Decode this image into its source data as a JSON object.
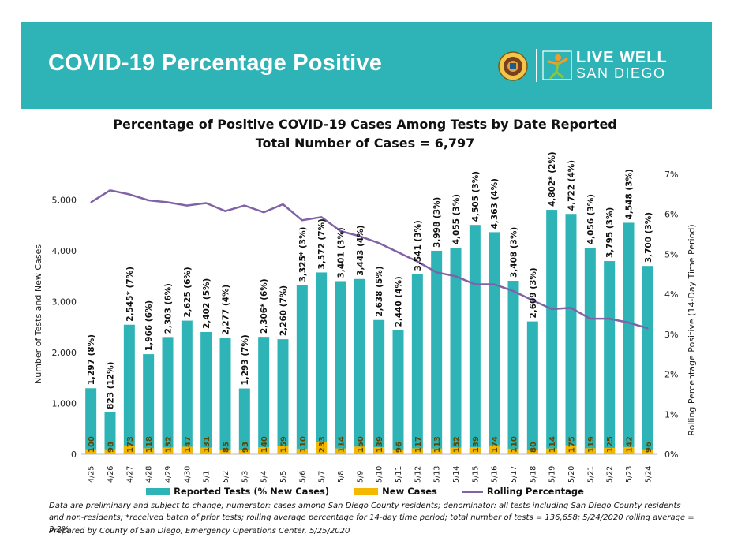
{
  "header": {
    "title": "COVID-19 Percentage Positive",
    "logo_line1": "LIVE WELL",
    "logo_line2": "SAN DIEGO"
  },
  "colors": {
    "banner": "#2eb4b7",
    "tests_bar": "#2eb4b7",
    "new_cases_bar": "#f5b800",
    "rolling_line": "#7f63a5"
  },
  "chart_data": {
    "type": "bar",
    "title": "Percentage of Positive COVID-19 Cases Among Tests by Date Reported",
    "subtitle": "Total Number of Cases = 6,797",
    "ylabel": "Number of Tests and New Cases",
    "y2label": "Rolling Percentage Positive (14-Day Time Period)",
    "ylim": [
      0,
      5500
    ],
    "yticks": [
      0,
      1000,
      2000,
      3000,
      4000,
      5000
    ],
    "ytick_labels": [
      "0",
      "1,000",
      "2,000",
      "3,000",
      "4,000",
      "5,000"
    ],
    "y2lim": [
      0,
      7
    ],
    "y2ticks": [
      0,
      1,
      2,
      3,
      4,
      5,
      6,
      7
    ],
    "y2tick_labels": [
      "0%",
      "1%",
      "2%",
      "3%",
      "4%",
      "5%",
      "6%",
      "7%"
    ],
    "grid": false,
    "legend_position": "bottom",
    "categories": [
      "4/25",
      "4/26",
      "4/27",
      "4/28",
      "4/29",
      "4/30",
      "5/1",
      "5/2",
      "5/3",
      "5/4",
      "5/5",
      "5/6",
      "5/7",
      "5/8",
      "5/9",
      "5/10",
      "5/11",
      "5/12",
      "5/13",
      "5/14",
      "5/15",
      "5/16",
      "5/17",
      "5/18",
      "5/19",
      "5/20",
      "5/21",
      "5/22",
      "5/23",
      "5/24"
    ],
    "series": [
      {
        "name": "Reported Tests (% New Cases)",
        "values": [
          1297,
          823,
          2545,
          1966,
          2303,
          2625,
          2402,
          2277,
          1293,
          2306,
          2260,
          3325,
          3572,
          3401,
          3443,
          2638,
          2440,
          3541,
          3998,
          4055,
          4505,
          4363,
          3408,
          2609,
          4802,
          4722,
          4056,
          3795,
          4548,
          3700
        ],
        "labels": [
          "1,297 (8%)",
          "823 (12%)",
          "2,545* (7%)",
          "1,966 (6%)",
          "2,303 (6%)",
          "2,625 (6%)",
          "2,402 (5%)",
          "2,277 (4%)",
          "1,293 (7%)",
          "2,306* (6%)",
          "2,260 (7%)",
          "3,325* (3%)",
          "3,572 (7%)",
          "3,401 (3%)",
          "3,443 (4%)",
          "2,638 (5%)",
          "2,440 (4%)",
          "3,541 (3%)",
          "3,998 (3%)",
          "4,055 (3%)",
          "4,505 (3%)",
          "4,363 (4%)",
          "3,408 (3%)",
          "2,609 (3%)",
          "4,802* (2%)",
          "4,722 (4%)",
          "4,056 (3%)",
          "3,795 (3%)",
          "4,548 (3%)",
          "3,700 (3%)"
        ]
      },
      {
        "name": "New Cases",
        "values": [
          100,
          98,
          173,
          118,
          132,
          147,
          131,
          85,
          93,
          140,
          159,
          110,
          233,
          114,
          150,
          139,
          96,
          117,
          113,
          132,
          139,
          174,
          110,
          80,
          114,
          175,
          119,
          125,
          142,
          96
        ]
      },
      {
        "name": "Rolling Percentage",
        "axis": "secondary",
        "values": [
          6.3,
          6.6,
          6.5,
          6.35,
          6.3,
          6.22,
          6.28,
          6.08,
          6.22,
          6.05,
          6.25,
          5.85,
          5.93,
          5.58,
          5.45,
          5.28,
          5.05,
          4.82,
          4.55,
          4.45,
          4.25,
          4.25,
          4.08,
          3.85,
          3.63,
          3.66,
          3.39,
          3.39,
          3.29,
          3.15
        ]
      }
    ]
  },
  "notes": {
    "line1": "Data are preliminary and subject to change; numerator: cases among San Diego County residents; denominator: all tests including San Diego County residents and non-residents; *received batch of prior tests; rolling average percentage for 14-day time period; total number of tests = 136,658; 5/24/2020 rolling average = 3.2%",
    "line2": "Prepared by County of San Diego, Emergency Operations Center, 5/25/2020"
  }
}
